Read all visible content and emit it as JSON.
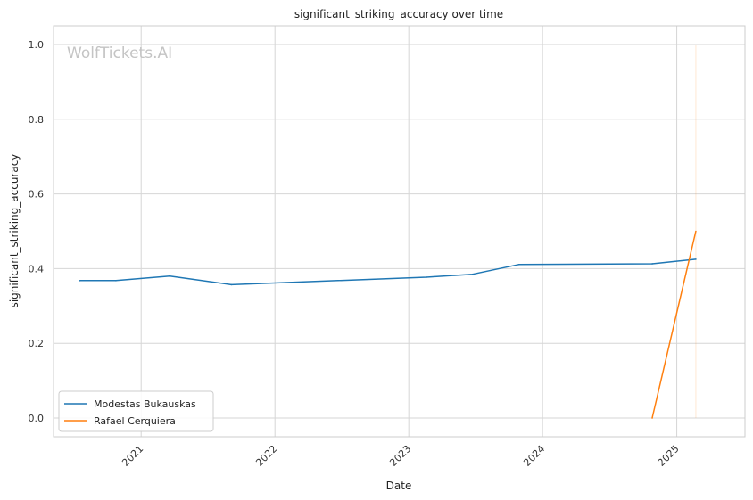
{
  "chart_data": {
    "type": "line",
    "title": "significant_striking_accuracy over time",
    "xlabel": "Date",
    "ylabel": "significant_striking_accuracy",
    "watermark": "WolfTickets.AI",
    "x_axis": {
      "ticks": [
        "2021",
        "2022",
        "2023",
        "2024",
        "2025"
      ],
      "range": [
        "2020-05-07",
        "2025-07-06"
      ]
    },
    "y_axis": {
      "ticks": [
        "0.0",
        "0.2",
        "0.4",
        "0.6",
        "0.8",
        "1.0"
      ],
      "range": [
        -0.05,
        1.05
      ]
    },
    "grid": true,
    "legend_position": "lower-left",
    "series": [
      {
        "name": "Modestas Bukauskas",
        "color": "#1f77b4",
        "points": [
          {
            "x": "2020-07-18",
            "y": 0.368
          },
          {
            "x": "2020-10-24",
            "y": 0.368
          },
          {
            "x": "2021-03-20",
            "y": 0.38
          },
          {
            "x": "2021-09-04",
            "y": 0.357
          },
          {
            "x": "2023-02-18",
            "y": 0.377
          },
          {
            "x": "2023-06-24",
            "y": 0.385
          },
          {
            "x": "2023-10-28",
            "y": 0.411
          },
          {
            "x": "2024-10-26",
            "y": 0.413
          },
          {
            "x": "2025-02-22",
            "y": 0.425
          }
        ]
      },
      {
        "name": "Rafael Cerquiera",
        "color": "#ff7f0e",
        "points": [
          {
            "x": "2024-10-26",
            "y": 0.0
          },
          {
            "x": "2025-02-22",
            "y": 0.5
          }
        ]
      }
    ]
  }
}
